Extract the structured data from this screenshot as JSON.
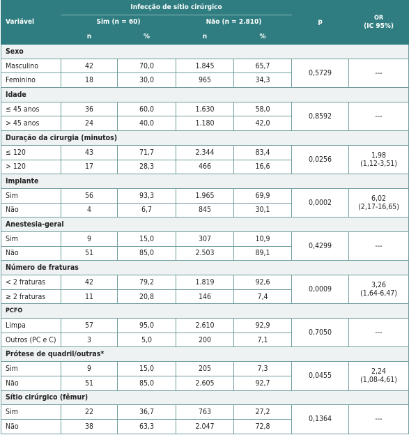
{
  "table": {
    "header": {
      "group": "Infecção de sítio cirúrgico",
      "variable": "Variável",
      "yes": "Sim (n = 60)",
      "no": "Não (n = 2.810)",
      "p": "p",
      "or": "OR",
      "or_ci": "(IC 95%)",
      "n1": "n",
      "pct1": "%",
      "n2": "n",
      "pct2": "%"
    },
    "groups": [
      {
        "title": "Sexo",
        "rows": [
          [
            "Masculino",
            "42",
            "70,0",
            "1.845",
            "65,7"
          ],
          [
            "Feminino",
            "18",
            "30,0",
            "965",
            "34,3"
          ]
        ],
        "p": "0,5729",
        "or": [
          "---"
        ]
      },
      {
        "title": "Idade",
        "rows": [
          [
            "≤ 45 anos",
            "36",
            "60,0",
            "1.630",
            "58,0"
          ],
          [
            "> 45 anos",
            "24",
            "40,0",
            "1.180",
            "42,0"
          ]
        ],
        "p": "0,8592",
        "or": [
          "---"
        ]
      },
      {
        "title": "Duração da cirurgia (minutos)",
        "rows": [
          [
            "≤ 120",
            "43",
            "71,7",
            "2.344",
            "83,4"
          ],
          [
            "> 120",
            "17",
            "28,3",
            "466",
            "16,6"
          ]
        ],
        "p": "0,0256",
        "or": [
          "1,98",
          "(1,12-3,51)"
        ]
      },
      {
        "title": "Implante",
        "rows": [
          [
            "Sim",
            "56",
            "93,3",
            "1.965",
            "69,9"
          ],
          [
            "Não",
            "4",
            "6,7",
            "845",
            "30,1"
          ]
        ],
        "p": "0,0002",
        "or": [
          "6,02",
          "(2,17-16,65)"
        ]
      },
      {
        "title": "Anestesia-geral",
        "rows": [
          [
            "Sim",
            "9",
            "15,0",
            "307",
            "10,9"
          ],
          [
            "Não",
            "51",
            "85,0",
            "2.503",
            "89,1"
          ]
        ],
        "p": "0,4299",
        "or": [
          "---"
        ]
      },
      {
        "title": "Número de fraturas",
        "rows": [
          [
            "< 2 fraturas",
            "42",
            "79,2",
            "1.819",
            "92,6"
          ],
          [
            "≥ 2 fraturas",
            "11",
            "20,8",
            "146",
            "7,4"
          ]
        ],
        "p": "0,0009",
        "or": [
          "3,26",
          "(1,64-6,47)"
        ]
      },
      {
        "title": "PCFO",
        "rows": [
          [
            "Limpa",
            "57",
            "95,0",
            "2.610",
            "92,9"
          ],
          [
            "Outros (PC e C)",
            "3",
            "5,0",
            "200",
            "7,1"
          ]
        ],
        "p": "0,7050",
        "or": [
          "---"
        ]
      },
      {
        "title": "Prótese de quadril/outras*",
        "rows": [
          [
            "Sim",
            "9",
            "15,0",
            "205",
            "7,3"
          ],
          [
            "Não",
            "51",
            "85,0",
            "2.605",
            "92,7"
          ]
        ],
        "p": "0,0455",
        "or": [
          "2,24",
          "(1,08-4,61)"
        ]
      },
      {
        "title": "Sítio cirúrgico (fêmur)",
        "rows": [
          [
            "Sim",
            "22",
            "36,7",
            "763",
            "27,2"
          ],
          [
            "Não",
            "38",
            "63,3",
            "2.047",
            "72,8"
          ]
        ],
        "p": "0,1364",
        "or": [
          "---"
        ]
      }
    ]
  }
}
